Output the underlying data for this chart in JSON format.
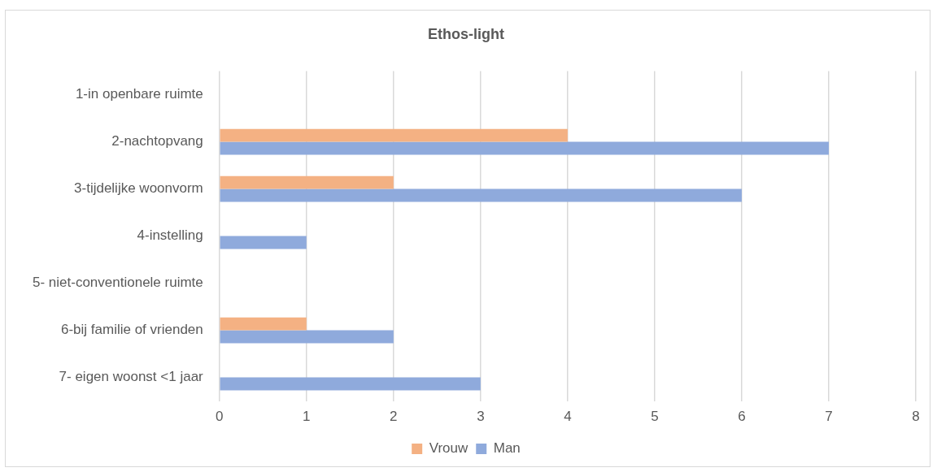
{
  "chart_data": {
    "type": "bar",
    "orientation": "horizontal",
    "title": "Ethos-light",
    "categories": [
      "1-in openbare ruimte",
      "2-nachtopvang",
      "3-tijdelijke woonvorm",
      "4-instelling",
      "5- niet-conventionele ruimte",
      "6-bij familie of vrienden",
      "7- eigen woonst <1 jaar"
    ],
    "series": [
      {
        "name": "Vrouw",
        "color": "#f4b183",
        "values": [
          0,
          4,
          2,
          0,
          0,
          1,
          0
        ]
      },
      {
        "name": "Man",
        "color": "#8faadc",
        "values": [
          0,
          7,
          6,
          1,
          0,
          2,
          3
        ]
      }
    ],
    "xlim": [
      0,
      8
    ],
    "xticks": [
      0,
      1,
      2,
      3,
      4,
      5,
      6,
      7,
      8
    ],
    "grid": "x",
    "legend": "bottom"
  }
}
